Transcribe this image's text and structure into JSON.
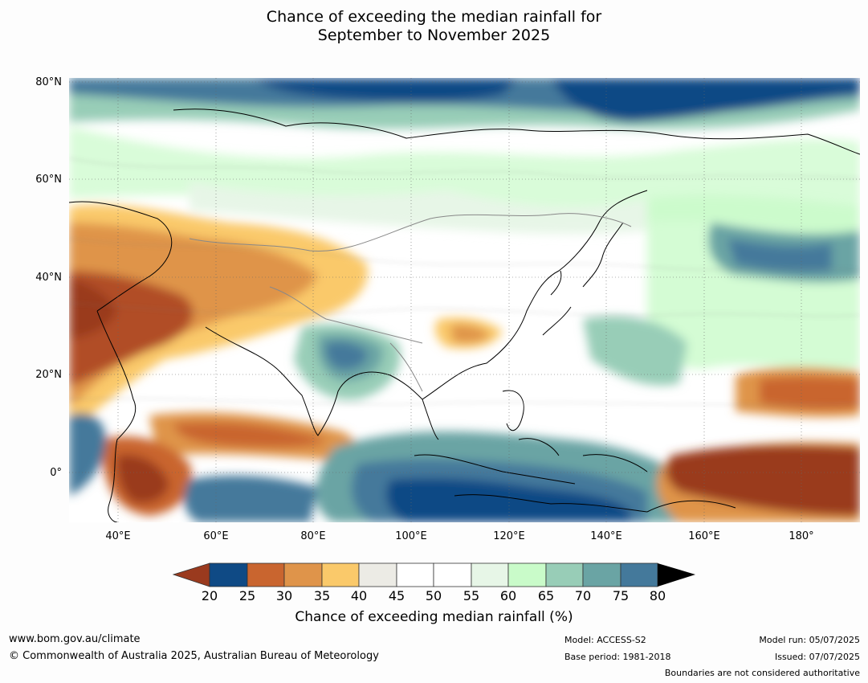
{
  "title_line1": "Chance of exceeding the median rainfall for",
  "title_line2": "September to November 2025",
  "y_ticks": [
    "80°N",
    "60°N",
    "40°N",
    "20°N",
    "0°"
  ],
  "x_ticks": [
    "40°E",
    "60°E",
    "80°E",
    "100°E",
    "120°E",
    "140°E",
    "160°E",
    "180°"
  ],
  "colorbar": {
    "ticks": [
      "20",
      "25",
      "30",
      "35",
      "40",
      "45",
      "50",
      "55",
      "60",
      "65",
      "70",
      "75",
      "80"
    ],
    "colors": [
      "#9a3a1e",
      "#b14d26",
      "#c9652f",
      "#df944a",
      "#fac96a",
      "#ecebe5",
      "#ffffff",
      "#ffffff",
      "#e7f6e7",
      "#c9fbc9",
      "#98cdb7",
      "#6aa4a4",
      "#44799b",
      "#0f4a85"
    ],
    "label": "Chance of exceeding median rainfall (%)"
  },
  "footer": {
    "url": "www.bom.gov.au/climate",
    "copyright": "© Commonwealth of Australia 2025, Australian Bureau of Meteorology",
    "model": "Model: ACCESS-S2",
    "base_period": "Base period: 1981-2018",
    "model_run": "Model run: 05/07/2025",
    "issued": "Issued: 07/07/2025",
    "disclaimer": "Boundaries are not considered authoritative"
  }
}
